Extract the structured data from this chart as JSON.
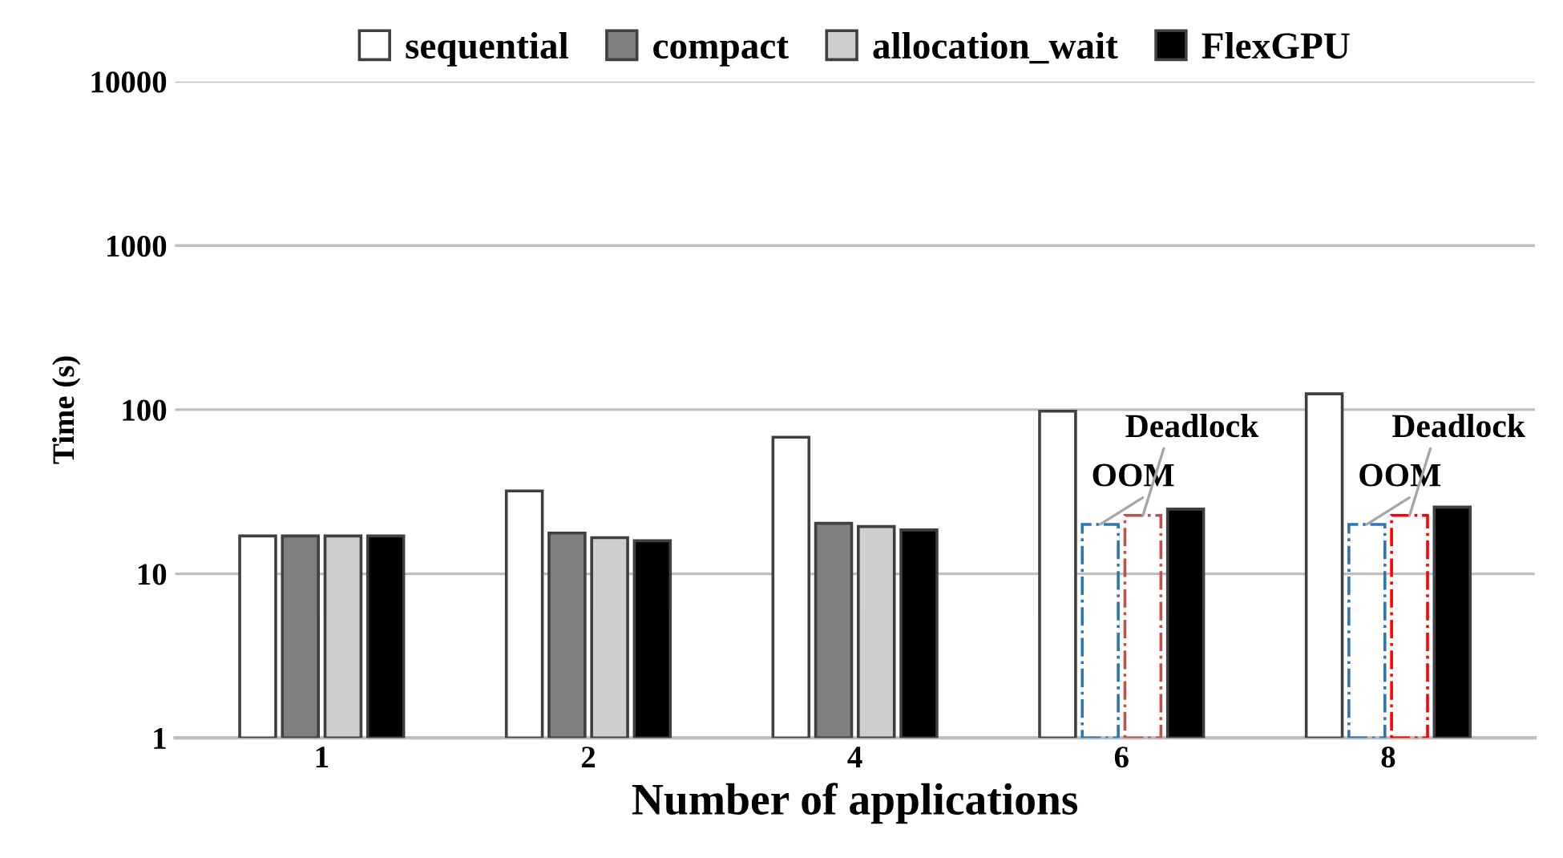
{
  "chart_data": {
    "type": "bar",
    "xlabel": "Number of applications",
    "ylabel": "Time (s)",
    "categories": [
      "1",
      "2",
      "4",
      "6",
      "8"
    ],
    "log": "y",
    "ylim": [
      1,
      10000
    ],
    "yticks": [
      1,
      10,
      100,
      1000,
      10000
    ],
    "grid": "y",
    "legend": "top",
    "series": [
      {
        "name": "sequential",
        "color": "#ffffff",
        "values": [
          17,
          32,
          68,
          98,
          125
        ]
      },
      {
        "name": "compact",
        "color": "#7f7f7f",
        "colors": [
          "#7f7f7f",
          "#7f7f7f",
          "#7f7f7f",
          "#2e75b6",
          "#2e75b6"
        ],
        "line_style": [
          "solid",
          "solid",
          "solid",
          "dashdot",
          "dashdot"
        ],
        "values": [
          17,
          17.7,
          20.3,
          20,
          20
        ]
      },
      {
        "name": "allocation_wait",
        "color": "#d0cece",
        "colors": [
          "#d0cece",
          "#d0cece",
          "#d0cece",
          "#c0504d",
          "#ff0000"
        ],
        "line_style": [
          "solid",
          "solid",
          "solid",
          "dashdot",
          "dashdot"
        ],
        "values": [
          17,
          16.6,
          19.4,
          22.7,
          22.7
        ]
      },
      {
        "name": "FlexGPU",
        "color": "#000000",
        "values": [
          17,
          15.9,
          18.5,
          24.8,
          25.5
        ]
      }
    ],
    "annotations": [
      "OOM",
      "Deadlock",
      "OOM",
      "Deadlock"
    ]
  }
}
